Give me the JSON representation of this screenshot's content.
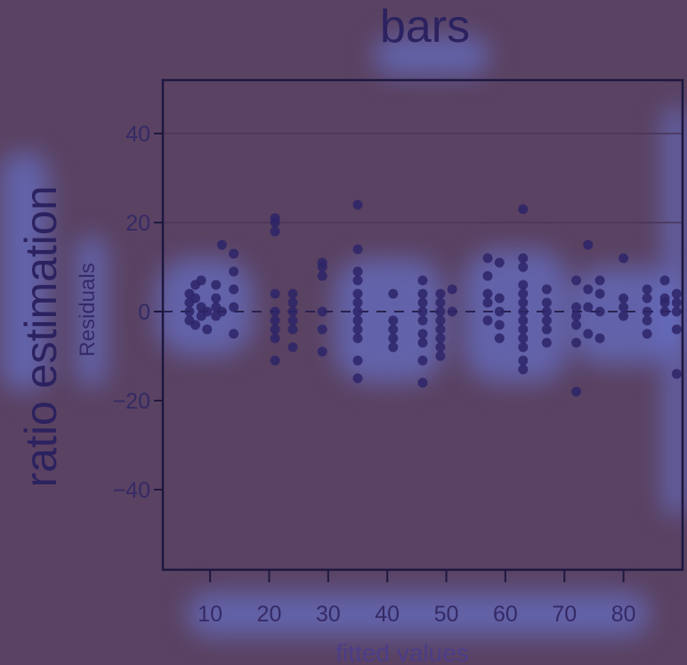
{
  "header": {
    "title": "bars"
  },
  "left_label": "ratio estimation",
  "colors": {
    "background": "#5a4262",
    "points": "#2e2468",
    "frame": "#1e1840",
    "highlight": "#6a7ee6"
  },
  "chart_data": {
    "type": "scatter",
    "title": "bars",
    "xlabel": "fitted values",
    "ylabel": "Residuals",
    "xlim": [
      2,
      90
    ],
    "ylim": [
      -58,
      52
    ],
    "xticks": [
      10,
      20,
      30,
      40,
      50,
      60,
      70,
      80
    ],
    "yticks": [
      -40,
      -20,
      0,
      20,
      40
    ],
    "grid": {
      "horizontal_lines": [
        20,
        40
      ]
    },
    "reference_line": {
      "y": 0,
      "style": "dashed"
    },
    "points": [
      [
        6.5,
        4
      ],
      [
        6.5,
        2
      ],
      [
        6.5,
        0
      ],
      [
        6.5,
        -2
      ],
      [
        7.5,
        6
      ],
      [
        7.5,
        3
      ],
      [
        7.5,
        -3
      ],
      [
        8.5,
        7
      ],
      [
        8.5,
        1
      ],
      [
        8.5,
        -1
      ],
      [
        9.5,
        0
      ],
      [
        9.5,
        -4
      ],
      [
        11,
        6
      ],
      [
        11,
        3
      ],
      [
        11,
        1
      ],
      [
        11,
        -1
      ],
      [
        12,
        15
      ],
      [
        12,
        0
      ],
      [
        14,
        13
      ],
      [
        14,
        9
      ],
      [
        14,
        5
      ],
      [
        14,
        1
      ],
      [
        14,
        -5
      ],
      [
        21,
        21
      ],
      [
        21,
        20
      ],
      [
        21,
        18
      ],
      [
        21,
        4
      ],
      [
        21,
        0
      ],
      [
        21,
        -2
      ],
      [
        21,
        -4
      ],
      [
        21,
        -6
      ],
      [
        21,
        -11
      ],
      [
        24,
        4
      ],
      [
        24,
        2
      ],
      [
        24,
        0
      ],
      [
        24,
        -2
      ],
      [
        24,
        -4
      ],
      [
        24,
        -8
      ],
      [
        29,
        11
      ],
      [
        29,
        10
      ],
      [
        29,
        8
      ],
      [
        29,
        0
      ],
      [
        29,
        -4
      ],
      [
        29,
        -9
      ],
      [
        35,
        24
      ],
      [
        35,
        14
      ],
      [
        35,
        9
      ],
      [
        35,
        7
      ],
      [
        35,
        4
      ],
      [
        35,
        2
      ],
      [
        35,
        0
      ],
      [
        35,
        -2
      ],
      [
        35,
        -4
      ],
      [
        35,
        -6
      ],
      [
        35,
        -11
      ],
      [
        35,
        -15
      ],
      [
        41,
        4
      ],
      [
        41,
        -2
      ],
      [
        41,
        -4
      ],
      [
        41,
        -6
      ],
      [
        41,
        -8
      ],
      [
        46,
        7
      ],
      [
        46,
        4
      ],
      [
        46,
        2
      ],
      [
        46,
        0
      ],
      [
        46,
        -2
      ],
      [
        46,
        -5
      ],
      [
        46,
        -7
      ],
      [
        46,
        -11
      ],
      [
        46,
        -16
      ],
      [
        49,
        4
      ],
      [
        49,
        2
      ],
      [
        49,
        0
      ],
      [
        49,
        -2
      ],
      [
        49,
        -4
      ],
      [
        49,
        -6
      ],
      [
        49,
        -8
      ],
      [
        49,
        -10
      ],
      [
        51,
        5
      ],
      [
        51,
        0
      ],
      [
        57,
        12
      ],
      [
        57,
        8
      ],
      [
        57,
        4
      ],
      [
        57,
        2
      ],
      [
        57,
        -2
      ],
      [
        59,
        11
      ],
      [
        59,
        3
      ],
      [
        59,
        0
      ],
      [
        59,
        -3
      ],
      [
        59,
        -6
      ],
      [
        63,
        23
      ],
      [
        63,
        12
      ],
      [
        63,
        10
      ],
      [
        63,
        6
      ],
      [
        63,
        4
      ],
      [
        63,
        2
      ],
      [
        63,
        0
      ],
      [
        63,
        -2
      ],
      [
        63,
        -4
      ],
      [
        63,
        -6
      ],
      [
        63,
        -8
      ],
      [
        63,
        -11
      ],
      [
        63,
        -13
      ],
      [
        67,
        5
      ],
      [
        67,
        2
      ],
      [
        67,
        0
      ],
      [
        67,
        -2
      ],
      [
        67,
        -4
      ],
      [
        67,
        -7
      ],
      [
        72,
        7
      ],
      [
        72,
        1
      ],
      [
        72,
        -1
      ],
      [
        72,
        -3
      ],
      [
        72,
        -7
      ],
      [
        72,
        -18
      ],
      [
        74,
        15
      ],
      [
        74,
        5
      ],
      [
        74,
        1
      ],
      [
        74,
        -5
      ],
      [
        76,
        7
      ],
      [
        76,
        4
      ],
      [
        76,
        0
      ],
      [
        76,
        -6
      ],
      [
        80,
        12
      ],
      [
        80,
        3
      ],
      [
        80,
        1
      ],
      [
        80,
        -1
      ],
      [
        84,
        5
      ],
      [
        84,
        3
      ],
      [
        84,
        0
      ],
      [
        84,
        -2
      ],
      [
        84,
        -5
      ],
      [
        87,
        7
      ],
      [
        87,
        3
      ],
      [
        87,
        2
      ],
      [
        87,
        0
      ],
      [
        89,
        4
      ],
      [
        89,
        2
      ],
      [
        89,
        0
      ],
      [
        89,
        -4
      ],
      [
        89,
        -14
      ]
    ]
  }
}
